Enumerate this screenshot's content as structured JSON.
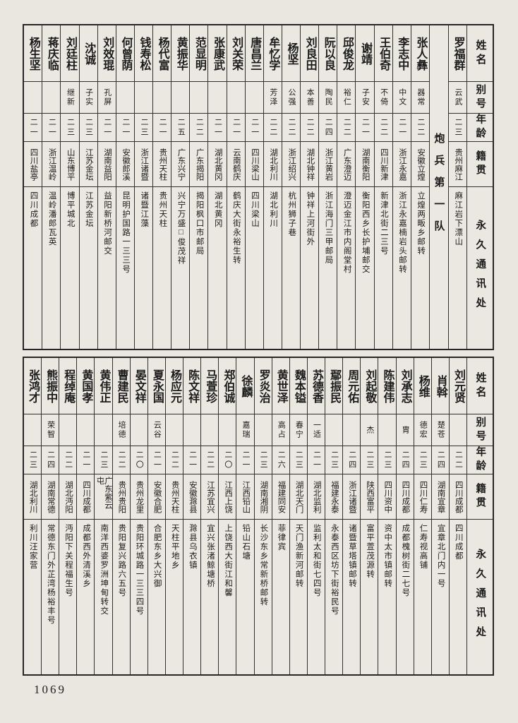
{
  "page": {
    "number": "1069"
  },
  "colors": {
    "paper": "#e9e7e0",
    "ink": "#1b1b1b",
    "line": "#30302d"
  },
  "headers": {
    "name": "姓名",
    "alias": "别号",
    "age": "年龄",
    "native": "籍贯",
    "address": "永久通讯处"
  },
  "tables": [
    {
      "unit_label": "炮兵第一队",
      "unit_insert_after": 0,
      "people": [
        {
          "name": "罗福群",
          "alias": "云武",
          "age": "二三",
          "native": "贵州麻江",
          "address": "麻江岩下漂山"
        },
        {
          "name": "张人彝",
          "alias": "器常",
          "age": "二二",
          "native": "安徽立煌",
          "address": "立煌两畈乡邮转"
        },
        {
          "name": "李志中",
          "alias": "中文",
          "age": "二一",
          "native": "浙江永嘉",
          "address": "浙江永嘉楠岩头邮转"
        },
        {
          "name": "王伯奇",
          "alias": "不倚",
          "age": "二二",
          "native": "四川新津",
          "address": "新津北街二三号"
        },
        {
          "name": "谢靖",
          "alias": "子安",
          "age": "二一",
          "native": "湖南衡阳",
          "address": "衡阳西乡长护埔邮交"
        },
        {
          "name": "邱俊龙",
          "alias": "裕仁",
          "age": "二二",
          "native": "广东澄迈",
          "address": "澄迈金江市内阁堂村"
        },
        {
          "name": "阮以良",
          "alias": "陶民",
          "age": "二四",
          "native": "浙江黄岩",
          "address": "浙江海门三甲邮局"
        },
        {
          "name": "刘良田",
          "alias": "本善",
          "age": "二二",
          "native": "湖北钟祥",
          "address": "钟祥上河街外"
        },
        {
          "name": "杨坚",
          "alias": "公强",
          "age": "二二",
          "native": "浙江绍兴",
          "address": "杭州狮子巷"
        },
        {
          "name": "牟忆学",
          "alias": "芳泽",
          "age": "二二",
          "native": "湖北利川",
          "address": "湖北利川"
        },
        {
          "name": "唐昌兰",
          "alias": "",
          "age": "二一",
          "native": "四川梁山",
          "address": "四川梁山"
        },
        {
          "name": "刘关荣",
          "alias": "",
          "age": "二一",
          "native": "云南鹤庆",
          "address": "鹤庆大街永裕生转"
        },
        {
          "name": "张康武",
          "alias": "",
          "age": "二一",
          "native": "湖北黄冈",
          "address": "湖北黄冈"
        },
        {
          "name": "范显明",
          "alias": "",
          "age": "二二",
          "native": "广东揭阳",
          "address": "揭阳枫口市邮局"
        },
        {
          "name": "黄振华",
          "alias": "",
          "age": "二五",
          "native": "广东兴宁",
          "address": "兴宁万盛□俊茂祥"
        },
        {
          "name": "杨代富",
          "alias": "",
          "age": "二一",
          "native": "贵州天柱",
          "address": "贵州天柱"
        },
        {
          "name": "钱寿松",
          "alias": "",
          "age": "二三",
          "native": "浙江诸暨",
          "address": "诸暨江藻"
        },
        {
          "name": "何曾荫",
          "alias": "",
          "age": "二一",
          "native": "安徽郎溪",
          "address": "昆明护国路一三三号"
        },
        {
          "name": "刘效琨",
          "alias": "孔屏",
          "age": "二一",
          "native": "湖南益阳",
          "address": "益阳新桥河邮交"
        },
        {
          "name": "沈诚",
          "alias": "子实",
          "age": "二三",
          "native": "江苏金坛",
          "address": "江苏金坛"
        },
        {
          "name": "刘廷柱",
          "alias": "继新",
          "age": "二三",
          "native": "山东博平",
          "address": "博平城北"
        },
        {
          "name": "蒋庆临",
          "alias": "",
          "age": "二一",
          "native": "浙江温岭",
          "address": "温岭潘郎瓦英"
        },
        {
          "name": "杨生坚",
          "alias": "",
          "age": "二一",
          "native": "四川盐亭",
          "address": "四川成都"
        }
      ]
    },
    {
      "people": [
        {
          "name": "刘元贤",
          "alias": "",
          "age": "二二",
          "native": "四川成都",
          "address": "四川成都"
        },
        {
          "name": "肖斡",
          "alias": "楚苍",
          "age": "二四",
          "native": "湖南宜章",
          "address": "宜章北门内一号"
        },
        {
          "name": "杨维",
          "alias": "德宏",
          "age": "二三",
          "native": "四川仁寿",
          "address": "仁寿视高铺"
        },
        {
          "name": "刘承志",
          "alias": "胄",
          "age": "二四",
          "native": "四川成都",
          "address": "成都槐树街二七号"
        },
        {
          "name": "陈建伟",
          "alias": "",
          "age": "二三",
          "native": "四川资中",
          "address": "资中太市镇邮转"
        },
        {
          "name": "刘起敬",
          "alias": "杰",
          "age": "二三",
          "native": "陕西富平",
          "address": "富平萱茂源转"
        },
        {
          "name": "周元佑",
          "alias": "",
          "age": "二四",
          "native": "浙江诸暨",
          "address": "诸暨草塔镇邮转"
        },
        {
          "name": "鄢振民",
          "alias": "",
          "age": "二三",
          "native": "福建永泰",
          "address": "永泰西区坊下街裕民号"
        },
        {
          "name": "苏德香",
          "alias": "一适",
          "age": "二一",
          "native": "湖北监利",
          "address": "监利太和街七四号"
        },
        {
          "name": "魏本镒",
          "alias": "春宁",
          "age": "二三",
          "native": "湖北天门",
          "address": "天门渔新河邮转"
        },
        {
          "name": "黄世泽",
          "alias": "高占",
          "age": "二六",
          "native": "福建同安",
          "address": "菲律宾"
        },
        {
          "name": "罗炎治",
          "alias": "",
          "age": "二三",
          "native": "湖南湘阴",
          "address": "长沙东乡常新桥邮转"
        },
        {
          "name": "徐麟",
          "alias": "嘉瑞",
          "age": "二一",
          "native": "江西铅山",
          "address": "铅山石塘"
        },
        {
          "name": "郑伯诚",
          "alias": "",
          "age": "二〇",
          "native": "江西上饶",
          "address": "上饶西大街江和馨"
        },
        {
          "name": "马萱珍",
          "alias": "",
          "age": "二二",
          "native": "江苏宜兴",
          "address": "宜兴张渚鲸塘桥"
        },
        {
          "name": "陈文祥",
          "alias": "",
          "age": "二一",
          "native": "安徽滁县",
          "address": "滁县乌衣镇"
        },
        {
          "name": "杨应元",
          "alias": "",
          "age": "二二",
          "native": "贵州天柱",
          "address": "天柱平地乡"
        },
        {
          "name": "夏永国",
          "alias": "云谷",
          "age": "二一",
          "native": "安徽合肥",
          "address": "合肥东乡大兴御"
        },
        {
          "name": "晏文祥",
          "alias": "",
          "age": "二〇",
          "native": "贵州龙里",
          "address": "贵阳环城路一三三四号"
        },
        {
          "name": "曹建民",
          "alias": "培德",
          "age": "二二",
          "native": "贵州贵阳",
          "address": "贵阳复兴路六五号"
        },
        {
          "name": "黄伟正",
          "alias": "",
          "age": "二三",
          "native": "广东紫云屯",
          "address": "南洋西婆罗洲坤甸转交"
        },
        {
          "name": "黄国孝",
          "alias": "",
          "age": "二一",
          "native": "四川成都",
          "address": "成都西外清溪乡"
        },
        {
          "name": "程绰庵",
          "alias": "",
          "age": "二二",
          "native": "湖北沔阳",
          "address": "沔阳下关程福生号"
        },
        {
          "name": "熊振中",
          "alias": "荣智",
          "age": "二四",
          "native": "湖南常德",
          "address": "常德东门外芷湾杨裕丰号"
        },
        {
          "name": "张鸿才",
          "alias": "",
          "age": "二三",
          "native": "湖北利川",
          "address": "利川汪家营"
        }
      ]
    }
  ]
}
